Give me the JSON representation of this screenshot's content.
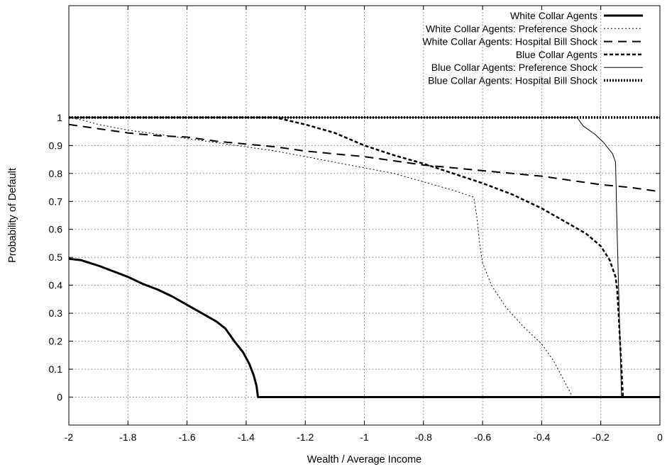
{
  "chart_data": {
    "type": "line",
    "xlabel": "Wealth / Average Income",
    "ylabel": "Probability of Default",
    "xlim": [
      -2,
      0
    ],
    "ylim": [
      -0.1,
      1.4
    ],
    "x_ticks": [
      "-2",
      "-1.8",
      "-1.6",
      "-1.4",
      "-1.2",
      "-1",
      "-0.8",
      "-0.6",
      "-0.4",
      "-0.2",
      "0"
    ],
    "y_ticks": [
      "0",
      "0.1",
      "0.2",
      "0.3",
      "0.4",
      "0.5",
      "0.6",
      "0.7",
      "0.8",
      "0.9",
      "1"
    ],
    "grid": true,
    "legend_position": "top-right",
    "series": [
      {
        "name": "White Collar Agents",
        "style": "thick-solid",
        "points": [
          [
            -2.0,
            0.495
          ],
          [
            -1.96,
            0.49
          ],
          [
            -1.9,
            0.47
          ],
          [
            -1.85,
            0.45
          ],
          [
            -1.8,
            0.43
          ],
          [
            -1.75,
            0.405
          ],
          [
            -1.7,
            0.385
          ],
          [
            -1.65,
            0.36
          ],
          [
            -1.6,
            0.33
          ],
          [
            -1.55,
            0.3
          ],
          [
            -1.5,
            0.27
          ],
          [
            -1.47,
            0.245
          ],
          [
            -1.44,
            0.2
          ],
          [
            -1.41,
            0.16
          ],
          [
            -1.39,
            0.12
          ],
          [
            -1.375,
            0.08
          ],
          [
            -1.365,
            0.04
          ],
          [
            -1.36,
            0.0
          ],
          [
            0.0,
            0.0
          ]
        ]
      },
      {
        "name": "White Collar Agents: Preference Shock",
        "style": "fine-dotted",
        "points": [
          [
            -2.0,
            1.0
          ],
          [
            -1.95,
            0.99
          ],
          [
            -1.9,
            0.975
          ],
          [
            -1.8,
            0.955
          ],
          [
            -1.7,
            0.94
          ],
          [
            -1.6,
            0.925
          ],
          [
            -1.5,
            0.91
          ],
          [
            -1.4,
            0.895
          ],
          [
            -1.3,
            0.88
          ],
          [
            -1.2,
            0.86
          ],
          [
            -1.1,
            0.84
          ],
          [
            -1.0,
            0.82
          ],
          [
            -0.9,
            0.8
          ],
          [
            -0.8,
            0.77
          ],
          [
            -0.7,
            0.74
          ],
          [
            -0.63,
            0.715
          ],
          [
            -0.62,
            0.65
          ],
          [
            -0.61,
            0.55
          ],
          [
            -0.6,
            0.48
          ],
          [
            -0.57,
            0.4
          ],
          [
            -0.52,
            0.32
          ],
          [
            -0.46,
            0.25
          ],
          [
            -0.4,
            0.19
          ],
          [
            -0.36,
            0.13
          ],
          [
            -0.33,
            0.07
          ],
          [
            -0.31,
            0.03
          ],
          [
            -0.295,
            0.0
          ]
        ]
      },
      {
        "name": "White Collar Agents: Hospital Bill Shock",
        "style": "long-dash",
        "points": [
          [
            -2.0,
            0.975
          ],
          [
            -1.9,
            0.96
          ],
          [
            -1.8,
            0.945
          ],
          [
            -1.7,
            0.935
          ],
          [
            -1.6,
            0.93
          ],
          [
            -1.5,
            0.915
          ],
          [
            -1.4,
            0.905
          ],
          [
            -1.3,
            0.895
          ],
          [
            -1.2,
            0.88
          ],
          [
            -1.1,
            0.87
          ],
          [
            -1.0,
            0.86
          ],
          [
            -0.9,
            0.845
          ],
          [
            -0.8,
            0.83
          ],
          [
            -0.7,
            0.82
          ],
          [
            -0.6,
            0.81
          ],
          [
            -0.5,
            0.8
          ],
          [
            -0.4,
            0.79
          ],
          [
            -0.3,
            0.775
          ],
          [
            -0.2,
            0.76
          ],
          [
            -0.1,
            0.75
          ],
          [
            0.0,
            0.735
          ]
        ]
      },
      {
        "name": "Blue Collar Agents",
        "style": "dashed",
        "points": [
          [
            -2.0,
            1.0
          ],
          [
            -1.3,
            1.0
          ],
          [
            -1.2,
            0.975
          ],
          [
            -1.1,
            0.945
          ],
          [
            -1.0,
            0.9
          ],
          [
            -0.9,
            0.865
          ],
          [
            -0.8,
            0.835
          ],
          [
            -0.7,
            0.8
          ],
          [
            -0.6,
            0.765
          ],
          [
            -0.5,
            0.725
          ],
          [
            -0.4,
            0.675
          ],
          [
            -0.3,
            0.615
          ],
          [
            -0.25,
            0.585
          ],
          [
            -0.2,
            0.54
          ],
          [
            -0.17,
            0.49
          ],
          [
            -0.15,
            0.43
          ],
          [
            -0.145,
            0.39
          ],
          [
            -0.14,
            0.3
          ],
          [
            -0.135,
            0.2
          ],
          [
            -0.13,
            0.1
          ],
          [
            -0.125,
            0.0
          ],
          [
            0.0,
            0.0
          ]
        ]
      },
      {
        "name": "Blue Collar Agents: Preference Shock",
        "style": "thin-solid",
        "points": [
          [
            -2.0,
            1.0
          ],
          [
            -0.28,
            1.0
          ],
          [
            -0.26,
            0.97
          ],
          [
            -0.22,
            0.94
          ],
          [
            -0.19,
            0.91
          ],
          [
            -0.16,
            0.87
          ],
          [
            -0.15,
            0.84
          ],
          [
            -0.145,
            0.6
          ],
          [
            -0.14,
            0.4
          ],
          [
            -0.135,
            0.2
          ],
          [
            -0.13,
            0.0
          ],
          [
            0.0,
            0.0
          ]
        ]
      },
      {
        "name": "Blue Collar Agents: Hospital Bill Shock",
        "style": "thick-dotted",
        "points": [
          [
            -2.0,
            1.0
          ],
          [
            0.0,
            1.0
          ]
        ]
      }
    ]
  }
}
